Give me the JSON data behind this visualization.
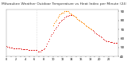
{
  "title": "Milwaukee Weather Outdoor Temperature vs Heat Index per Minute (24 Hours)",
  "title_fontsize": 3.2,
  "background_color": "#ffffff",
  "grid_color": "#cccccc",
  "temp_color": "#dd0000",
  "heat_color": "#ff8800",
  "vline_x": 6.5,
  "vline_color": "#aaaaaa",
  "ylim": [
    40,
    92
  ],
  "xlim": [
    0,
    24
  ],
  "yticks": [
    40,
    50,
    60,
    70,
    80,
    90
  ],
  "ytick_labels": [
    "40",
    "50",
    "60",
    "70",
    "80",
    "90"
  ],
  "ytick_fontsize": 3.0,
  "xtick_fontsize": 2.5,
  "temp_x": [
    0,
    0.25,
    0.5,
    0.75,
    1,
    1.25,
    1.5,
    1.75,
    2,
    2.25,
    2.5,
    2.75,
    3,
    3.25,
    3.5,
    3.75,
    4,
    4.25,
    4.5,
    4.75,
    5,
    5.25,
    5.5,
    5.75,
    6,
    6.25,
    6.5,
    6.75,
    7,
    7.25,
    7.5,
    7.75,
    8,
    8.25,
    8.5,
    8.75,
    9,
    9.25,
    9.5,
    9.75,
    10,
    10.25,
    10.5,
    10.75,
    11,
    11.25,
    11.5,
    11.75,
    12,
    12.25,
    12.5,
    12.75,
    13,
    13.25,
    13.5,
    13.75,
    14,
    14.25,
    14.5,
    14.75,
    15,
    15.25,
    15.5,
    15.75,
    16,
    16.25,
    16.5,
    16.75,
    17,
    17.25,
    17.5,
    17.75,
    18,
    18.25,
    18.5,
    18.75,
    19,
    19.25,
    19.5,
    19.75,
    20,
    20.25,
    20.5,
    20.75,
    21,
    21.25,
    21.5,
    21.75,
    22,
    22.25,
    22.5,
    22.75,
    23,
    23.25,
    23.5,
    23.75
  ],
  "temp_y": [
    52,
    51,
    51,
    50,
    50,
    50,
    49,
    49,
    49,
    49,
    49,
    49,
    49,
    48,
    48,
    48,
    48,
    48,
    48,
    47,
    47,
    47,
    47,
    47,
    47,
    47,
    47,
    46,
    46,
    46,
    47,
    47,
    48,
    49,
    52,
    54,
    57,
    60,
    63,
    65,
    67,
    69,
    71,
    73,
    75,
    77,
    78,
    80,
    81,
    82,
    83,
    84,
    85,
    85,
    86,
    86,
    86,
    86,
    85,
    84,
    83,
    82,
    81,
    80,
    79,
    78,
    77,
    76,
    75,
    74,
    73,
    72,
    71,
    70,
    69,
    68,
    67,
    66,
    65,
    64,
    63,
    62,
    61,
    60,
    59,
    58,
    57,
    57,
    57,
    56,
    56,
    56,
    55,
    55,
    55,
    55
  ],
  "heat_x": [
    10,
    10.25,
    10.5,
    10.75,
    11,
    11.25,
    11.5,
    11.75,
    12,
    12.25,
    12.5,
    12.75,
    13,
    13.25,
    13.5,
    13.75,
    14,
    14.25,
    14.5,
    14.75,
    15,
    15.25,
    15.5,
    15.75,
    16,
    16.25,
    16.5,
    16.75,
    17,
    17.25,
    17.5,
    17.75,
    18,
    18.25
  ],
  "heat_y": [
    75,
    77,
    79,
    81,
    83,
    85,
    87,
    88,
    89,
    89,
    90,
    90,
    90,
    90,
    89,
    88,
    87,
    86,
    85,
    84,
    83,
    82,
    81,
    80,
    79,
    78,
    77,
    76,
    75,
    74,
    73,
    72,
    71,
    70
  ]
}
